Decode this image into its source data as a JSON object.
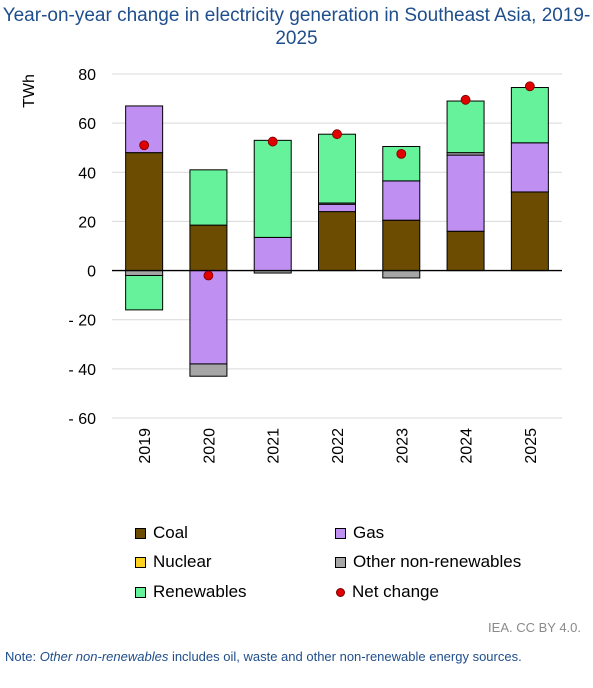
{
  "title": "Year-on-year change in electricity generation in Southeast Asia, 2019-2025",
  "credit": "IEA. CC BY 4.0.",
  "note": {
    "prefix": "Note: ",
    "emphasis": "Other non-renewables",
    "suffix": " includes oil, waste and other non-renewable energy sources."
  },
  "legend": [
    {
      "label": "Coal",
      "color": "#6b4c00"
    },
    {
      "label": "Gas",
      "color": "#bf8ff2"
    },
    {
      "label": "Nuclear",
      "color": "#ffd21f"
    },
    {
      "label": "Other non-renewables",
      "color": "#a6a6a6"
    },
    {
      "label": "Renewables",
      "color": "#66f29a"
    },
    {
      "label": "Net change",
      "color": "#e00000"
    }
  ],
  "chart_data": {
    "type": "bar",
    "stacked": true,
    "title": "Year-on-year change in electricity generation in Southeast Asia, 2019-2025",
    "ylabel": "TWh",
    "ylim": [
      -60,
      80
    ],
    "yticks": [
      80,
      60,
      40,
      20,
      0,
      -20,
      -40,
      -60
    ],
    "ytick_labels": [
      "80",
      "60",
      "40",
      "20",
      "0",
      "- 20",
      "- 40",
      "- 60"
    ],
    "categories": [
      "2019",
      "2020",
      "2021",
      "2022",
      "2023",
      "2024",
      "2025"
    ],
    "series": [
      {
        "name": "Coal",
        "color": "#6b4c00",
        "values": [
          48,
          18.5,
          0,
          24,
          20.5,
          16,
          32
        ]
      },
      {
        "name": "Gas",
        "color": "#bf8ff2",
        "values": [
          19,
          -38,
          13.5,
          3,
          16,
          31,
          20
        ]
      },
      {
        "name": "Nuclear",
        "color": "#ffd21f",
        "values": [
          0,
          0,
          0,
          0,
          0,
          0,
          0
        ]
      },
      {
        "name": "Other non-renewables",
        "color": "#a6a6a6",
        "values": [
          -2,
          -5,
          -1,
          0.5,
          -3,
          1,
          0
        ]
      },
      {
        "name": "Renewables",
        "color": "#66f29a",
        "values": [
          -14,
          22.5,
          39.5,
          28,
          14,
          21,
          22.5
        ]
      }
    ],
    "net_change": {
      "name": "Net change",
      "color": "#e00000",
      "values": [
        51,
        -2,
        52.5,
        55.5,
        47.5,
        69.5,
        75
      ]
    },
    "grid": true,
    "legend_position": "bottom"
  }
}
